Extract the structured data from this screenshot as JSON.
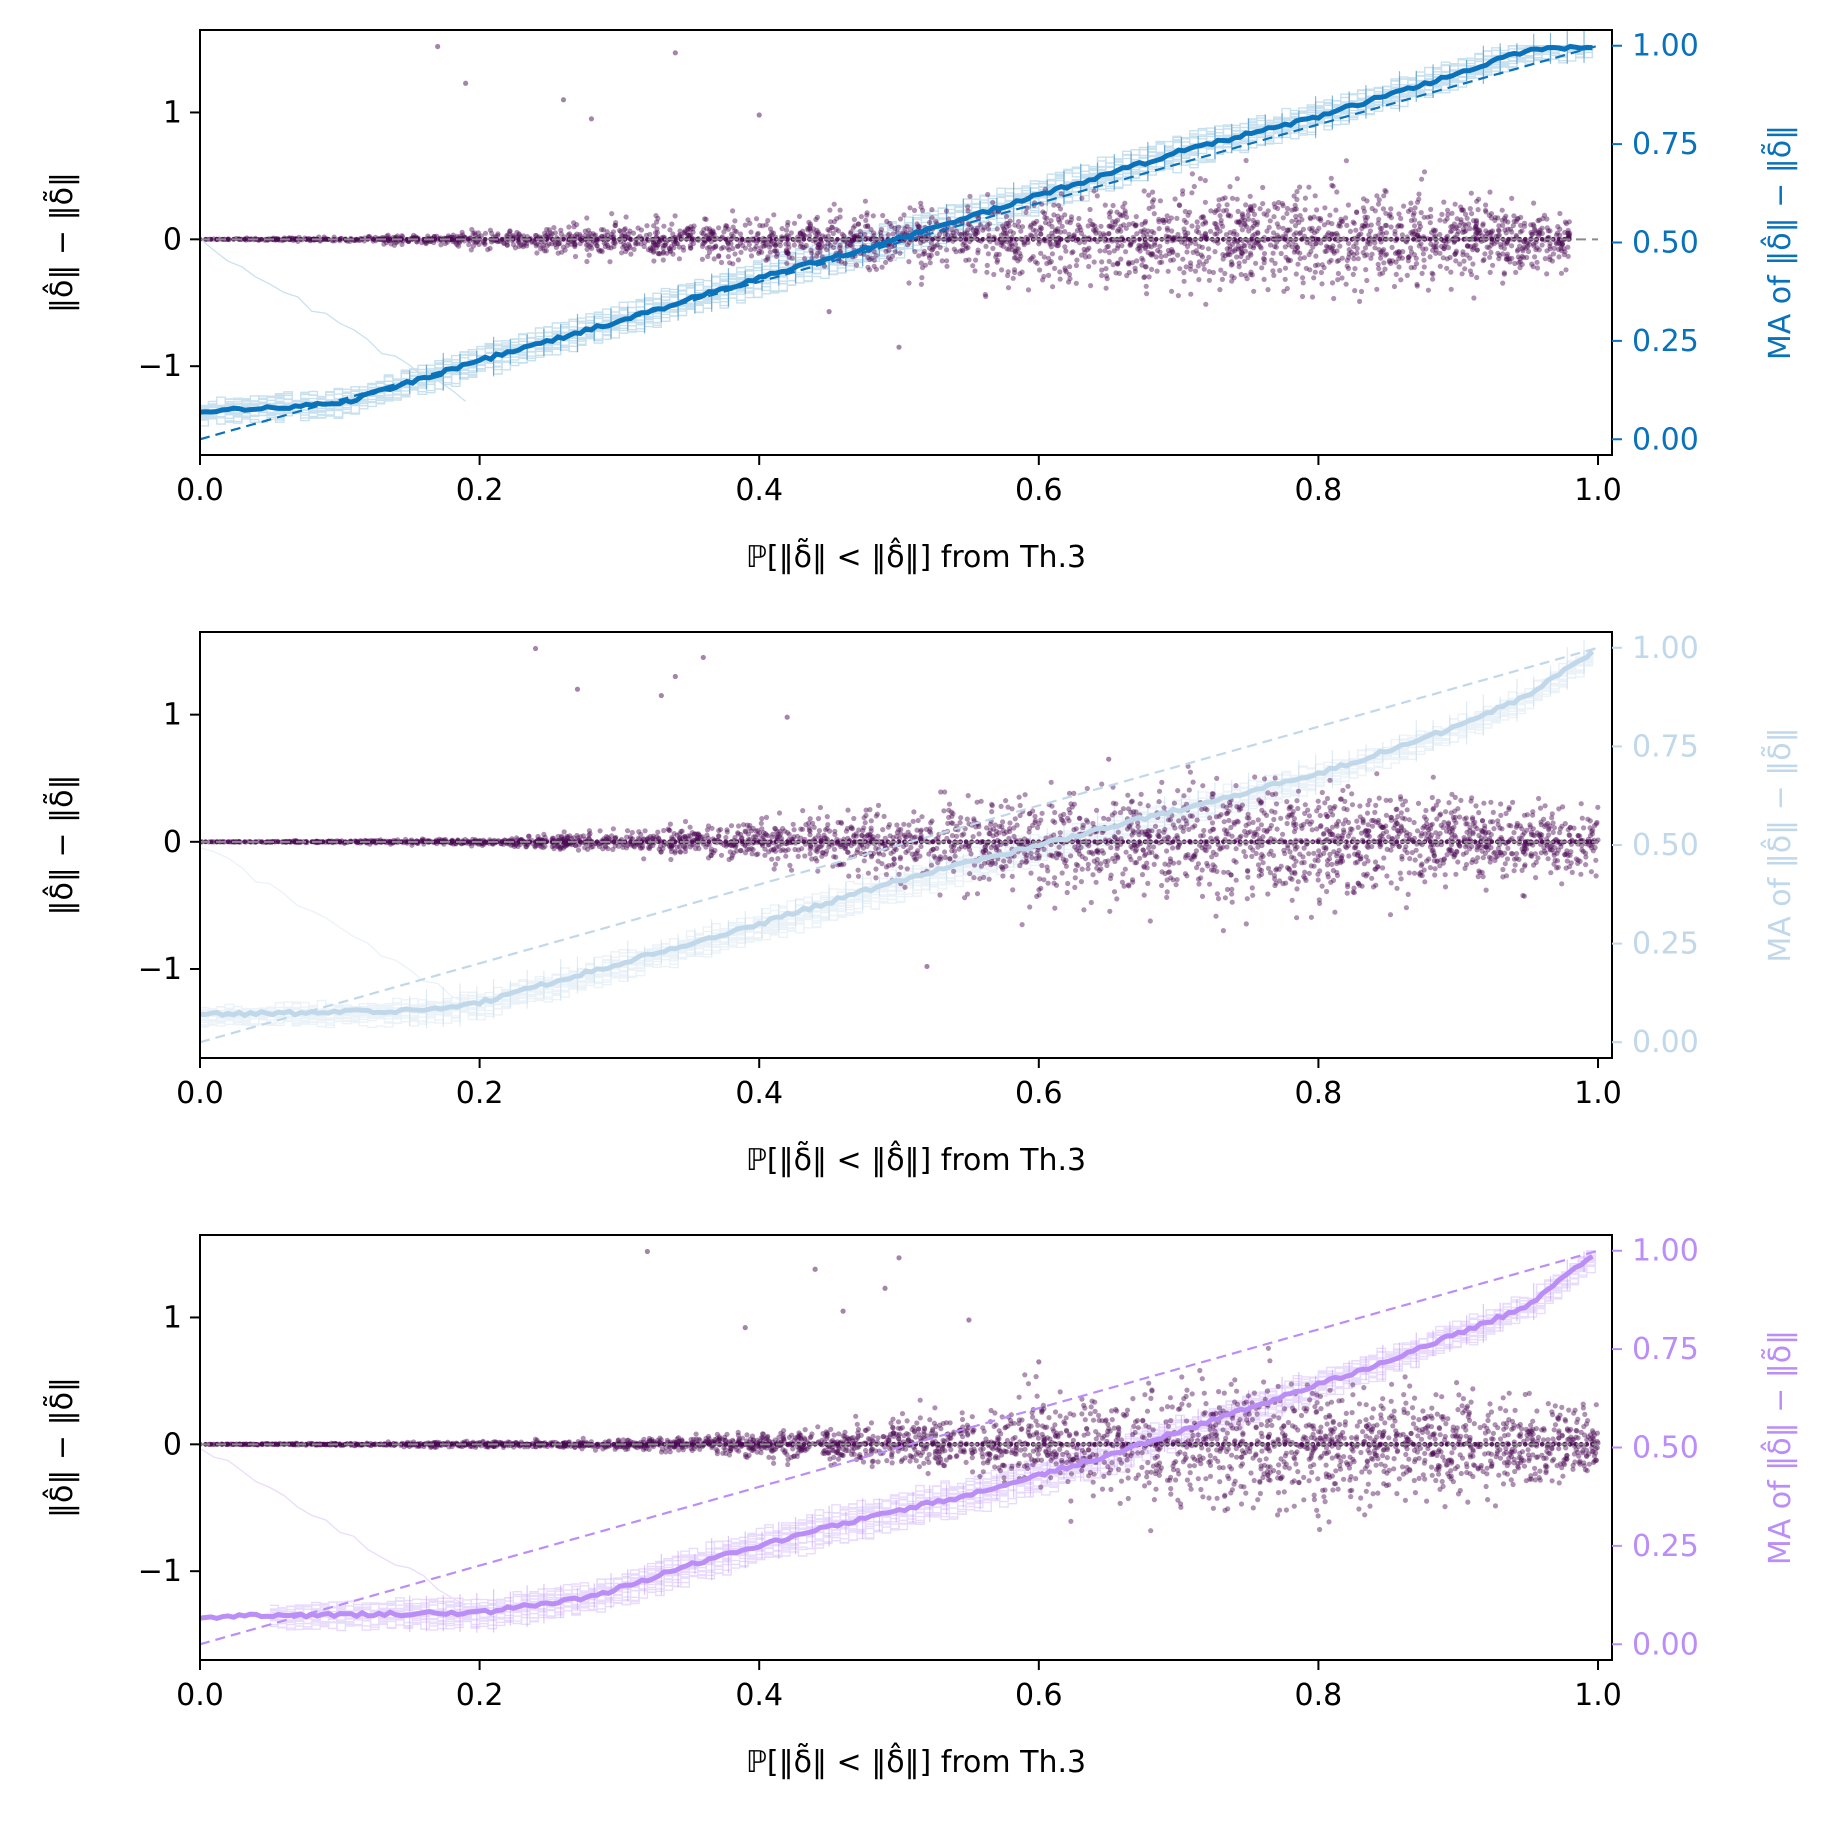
{
  "chart_data": [
    {
      "type": "scatter",
      "panel": "top",
      "accent_color": "#0a72ba",
      "light_color": "#9ecae1",
      "point_color": "#4b0a55",
      "xlabel": "ℙ[‖δ̃‖ < ‖δ̂‖] from Th.3",
      "ylabel": "‖δ̂‖ − ‖δ̃‖",
      "ylabel_right": "MA of ‖δ̂‖ − ‖δ̃‖",
      "xlim": [
        0.0,
        1.01
      ],
      "ylim": [
        -1.7,
        1.65
      ],
      "ylim_right": [
        -0.04,
        1.04
      ],
      "xticks": [
        "0.0",
        "0.2",
        "0.4",
        "0.6",
        "0.8",
        "1.0"
      ],
      "yticks": [
        "1",
        "0",
        "−1"
      ],
      "yticks_right": [
        "1.00",
        "0.75",
        "0.50",
        "0.25",
        "0.00"
      ],
      "scatter_band": [
        [
          0.0,
          0.0
        ],
        [
          0.15,
          0.03
        ],
        [
          0.3,
          0.12
        ],
        [
          0.5,
          0.22
        ],
        [
          0.7,
          0.35
        ],
        [
          0.8,
          0.38
        ],
        [
          0.9,
          0.3
        ],
        [
          0.97,
          0.2
        ]
      ],
      "scatter_x_max": 0.98,
      "ma_curve": [
        [
          0.0,
          0.07
        ],
        [
          0.1,
          0.09
        ],
        [
          0.2,
          0.2
        ],
        [
          0.3,
          0.3
        ],
        [
          0.4,
          0.41
        ],
        [
          0.5,
          0.51
        ],
        [
          0.6,
          0.62
        ],
        [
          0.7,
          0.73
        ],
        [
          0.8,
          0.82
        ],
        [
          0.9,
          0.93
        ],
        [
          0.95,
          0.99
        ],
        [
          1.0,
          1.0
        ]
      ],
      "ma_lower_start": 0.0,
      "outliers": [
        [
          0.17,
          1.52
        ],
        [
          0.19,
          1.23
        ],
        [
          0.34,
          1.47
        ],
        [
          0.28,
          0.95
        ],
        [
          0.26,
          1.1
        ],
        [
          0.4,
          0.98
        ],
        [
          0.45,
          -0.57
        ],
        [
          0.5,
          -0.85
        ]
      ]
    },
    {
      "type": "scatter",
      "panel": "middle",
      "accent_color": "#c1d8ea",
      "light_color": "#dbe8f3",
      "point_color": "#4b0a55",
      "xlabel": "ℙ[‖δ̃‖ < ‖δ̂‖] from Th.3",
      "ylabel": "‖δ̂‖ − ‖δ̃‖",
      "ylabel_right": "MA of ‖δ̂‖ − ‖δ̃‖",
      "xlim": [
        0.0,
        1.01
      ],
      "ylim": [
        -1.7,
        1.65
      ],
      "ylim_right": [
        -0.04,
        1.04
      ],
      "xticks": [
        "0.0",
        "0.2",
        "0.4",
        "0.6",
        "0.8",
        "1.0"
      ],
      "yticks": [
        "1",
        "0",
        "−1"
      ],
      "yticks_right": [
        "1.00",
        "0.75",
        "0.50",
        "0.25",
        "0.00"
      ],
      "scatter_band": [
        [
          0.0,
          0.0
        ],
        [
          0.2,
          0.02
        ],
        [
          0.35,
          0.1
        ],
        [
          0.5,
          0.22
        ],
        [
          0.6,
          0.35
        ],
        [
          0.7,
          0.42
        ],
        [
          0.8,
          0.38
        ],
        [
          0.9,
          0.3
        ],
        [
          1.0,
          0.22
        ]
      ],
      "scatter_x_max": 1.0,
      "ma_curve": [
        [
          0.0,
          0.07
        ],
        [
          0.15,
          0.08
        ],
        [
          0.2,
          0.1
        ],
        [
          0.3,
          0.2
        ],
        [
          0.4,
          0.3
        ],
        [
          0.5,
          0.41
        ],
        [
          0.6,
          0.5
        ],
        [
          0.7,
          0.59
        ],
        [
          0.8,
          0.68
        ],
        [
          0.9,
          0.8
        ],
        [
          0.95,
          0.88
        ],
        [
          1.0,
          1.0
        ]
      ],
      "ma_lower_start": 0.0,
      "outliers": [
        [
          0.24,
          1.52
        ],
        [
          0.27,
          1.2
        ],
        [
          0.34,
          1.3
        ],
        [
          0.36,
          1.45
        ],
        [
          0.33,
          1.15
        ],
        [
          0.42,
          0.98
        ],
        [
          0.52,
          -0.98
        ],
        [
          0.65,
          0.65
        ]
      ]
    },
    {
      "type": "scatter",
      "panel": "bottom",
      "accent_color": "#bb8ef7",
      "light_color": "#d8bffb",
      "point_color": "#4b0a55",
      "xlabel": "ℙ[‖δ̃‖ < ‖δ̂‖] from Th.3",
      "ylabel": "‖δ̂‖ − ‖δ̃‖",
      "ylabel_right": "MA of ‖δ̂‖ − ‖δ̃‖",
      "xlim": [
        0.0,
        1.01
      ],
      "ylim": [
        -1.7,
        1.65
      ],
      "ylim_right": [
        -0.04,
        1.04
      ],
      "xticks": [
        "0.0",
        "0.2",
        "0.4",
        "0.6",
        "0.8",
        "1.0"
      ],
      "yticks": [
        "1",
        "0",
        "−1"
      ],
      "yticks_right": [
        "1.00",
        "0.75",
        "0.50",
        "0.25",
        "0.00"
      ],
      "scatter_band": [
        [
          0.0,
          0.0
        ],
        [
          0.3,
          0.03
        ],
        [
          0.45,
          0.12
        ],
        [
          0.55,
          0.22
        ],
        [
          0.65,
          0.38
        ],
        [
          0.75,
          0.45
        ],
        [
          0.85,
          0.4
        ],
        [
          0.95,
          0.3
        ],
        [
          1.0,
          0.22
        ]
      ],
      "scatter_x_max": 1.0,
      "ma_curve": [
        [
          0.0,
          0.07
        ],
        [
          0.2,
          0.08
        ],
        [
          0.28,
          0.12
        ],
        [
          0.35,
          0.2
        ],
        [
          0.45,
          0.3
        ],
        [
          0.55,
          0.38
        ],
        [
          0.65,
          0.48
        ],
        [
          0.75,
          0.6
        ],
        [
          0.85,
          0.72
        ],
        [
          0.95,
          0.86
        ],
        [
          1.0,
          1.0
        ]
      ],
      "ma_lower_start": 0.05,
      "outliers": [
        [
          0.32,
          1.52
        ],
        [
          0.44,
          1.38
        ],
        [
          0.49,
          1.23
        ],
        [
          0.5,
          1.47
        ],
        [
          0.46,
          1.05
        ],
        [
          0.39,
          0.92
        ],
        [
          0.55,
          0.98
        ],
        [
          0.6,
          0.65
        ]
      ]
    }
  ]
}
